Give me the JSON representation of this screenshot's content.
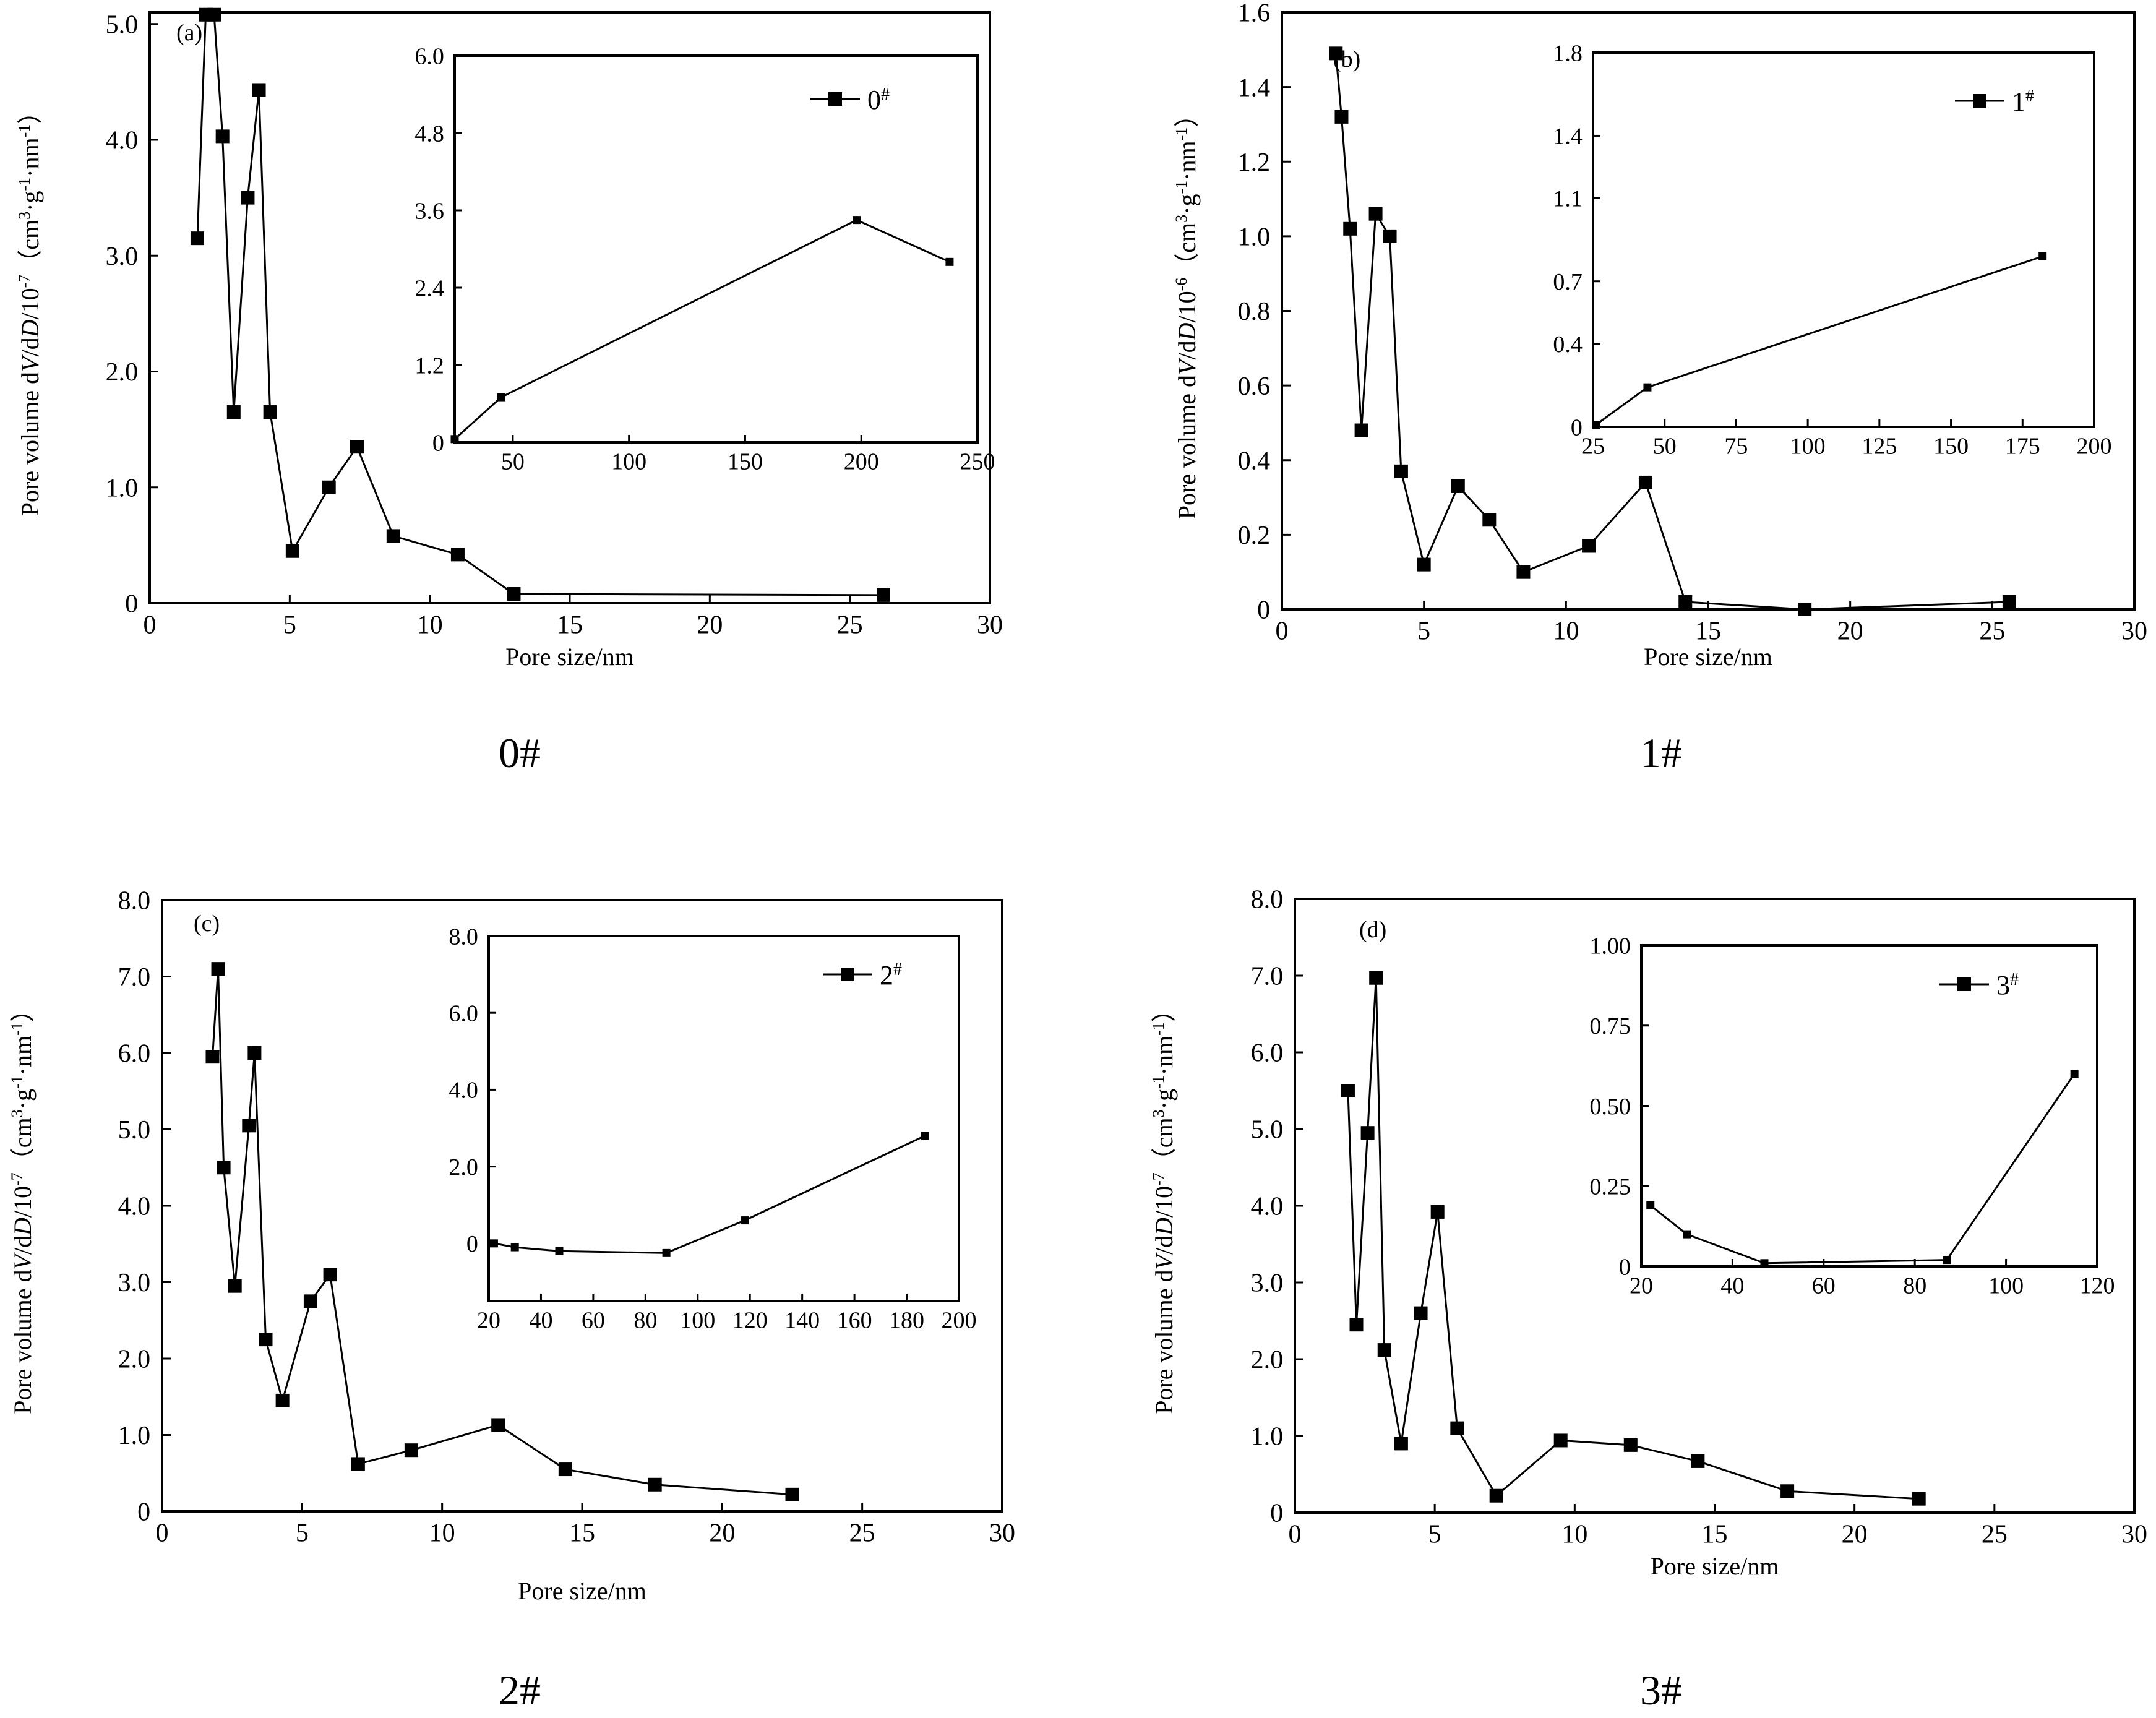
{
  "chart_data": [
    {
      "type": "line",
      "panel_label": "(a)",
      "caption": "0#",
      "xlabel": "Pore size/nm",
      "ylabel_parts": {
        "base": "Pore volume d",
        "v": "V",
        "mid": "/d",
        "d": "D",
        "scale": "/10",
        "exp": "-7",
        "unit_open": "（cm",
        "unit_exp1": "3",
        "unit_mid": "·g",
        "unit_exp2": "-1",
        "unit_mid2": "·nm",
        "unit_exp3": "-1",
        "unit_close": "）"
      },
      "xlim": [
        0,
        30
      ],
      "ylim": [
        0,
        5.1
      ],
      "xticks": [
        0,
        5,
        10,
        15,
        20,
        25,
        30
      ],
      "xtick_labels": [
        "0",
        "5",
        "10",
        "15",
        "20",
        "25",
        "30"
      ],
      "yticks": [
        0,
        1,
        2,
        3,
        4,
        5
      ],
      "ytick_labels": [
        "0",
        "1.0",
        "2.0",
        "3.0",
        "4.0",
        "5.0"
      ],
      "series": [
        {
          "name": "0#",
          "x": [
            1.7,
            2.0,
            2.3,
            2.6,
            3.0,
            3.5,
            3.9,
            4.3,
            5.1,
            6.4,
            7.4,
            8.7,
            11.0,
            13.0,
            26.2
          ],
          "y": [
            3.15,
            5.08,
            5.08,
            4.03,
            1.65,
            3.5,
            4.43,
            1.65,
            0.45,
            1.0,
            1.35,
            0.58,
            0.42,
            0.08,
            0.07
          ]
        }
      ],
      "inset": {
        "legend": "0#",
        "xlim": [
          25,
          250
        ],
        "ylim": [
          0,
          6.0
        ],
        "xticks": [
          50,
          100,
          150,
          200,
          250
        ],
        "xtick_labels": [
          "50",
          "100",
          "150",
          "200",
          "250"
        ],
        "yticks": [
          0,
          1.2,
          2.4,
          3.6,
          4.8,
          6.0
        ],
        "ytick_labels": [
          "0",
          "1.2",
          "2.4",
          "3.6",
          "4.8",
          "6.0"
        ],
        "series": [
          {
            "name": "0#",
            "x": [
              25,
              45,
              198,
              238
            ],
            "y": [
              0.05,
              0.7,
              3.45,
              2.8
            ]
          }
        ]
      }
    },
    {
      "type": "line",
      "panel_label": "(b)",
      "caption": "1#",
      "xlabel": "Pore size/nm",
      "ylabel_parts": {
        "base": "Pore volume d",
        "v": "V",
        "mid": "/d",
        "d": "D",
        "scale": "/10",
        "exp": "-6",
        "unit_open": "（cm",
        "unit_exp1": "3",
        "unit_mid": "·g",
        "unit_exp2": "-1",
        "unit_mid2": "·nm",
        "unit_exp3": "-1",
        "unit_close": "）"
      },
      "xlim": [
        0,
        30
      ],
      "ylim": [
        0,
        1.6
      ],
      "xticks": [
        0,
        5,
        10,
        15,
        20,
        25,
        30
      ],
      "xtick_labels": [
        "0",
        "5",
        "10",
        "15",
        "20",
        "25",
        "30"
      ],
      "yticks": [
        0,
        0.2,
        0.4,
        0.6,
        0.8,
        1.0,
        1.2,
        1.4,
        1.6
      ],
      "ytick_labels": [
        "0",
        "0.2",
        "0.4",
        "0.6",
        "0.8",
        "1.0",
        "1.2",
        "1.4",
        "1.6"
      ],
      "series": [
        {
          "name": "1#",
          "x": [
            1.9,
            2.1,
            2.4,
            2.8,
            3.3,
            3.8,
            4.2,
            5.0,
            6.2,
            7.3,
            8.5,
            10.8,
            12.8,
            14.2,
            18.4,
            25.6
          ],
          "y": [
            1.49,
            1.32,
            1.02,
            0.48,
            1.06,
            1.0,
            0.37,
            0.12,
            0.33,
            0.24,
            0.1,
            0.17,
            0.34,
            0.02,
            0.0,
            0.02
          ]
        }
      ],
      "inset": {
        "legend": "1#",
        "xlim": [
          25,
          200
        ],
        "ylim": [
          0,
          1.8
        ],
        "xticks": [
          25,
          50,
          75,
          100,
          125,
          150,
          175,
          200
        ],
        "xtick_labels": [
          "25",
          "50",
          "75",
          "100",
          "125",
          "150",
          "175",
          "200"
        ],
        "yticks": [
          0,
          0.4,
          0.7,
          1.1,
          1.4,
          1.8
        ],
        "ytick_labels": [
          "0",
          "0.4",
          "0.7",
          "1.1",
          "1.4",
          "1.8"
        ],
        "series": [
          {
            "name": "1#",
            "x": [
              26,
              44,
              182
            ],
            "y": [
              0.01,
              0.19,
              0.82
            ]
          }
        ]
      }
    },
    {
      "type": "line",
      "panel_label": "(c)",
      "caption": "2#",
      "xlabel": "Pore size/nm",
      "ylabel_parts": {
        "base": "Pore volume d",
        "v": "V",
        "mid": "/d",
        "d": "D",
        "scale": "/10",
        "exp": "-7",
        "unit_open": "（cm",
        "unit_exp1": "3",
        "unit_mid": "·g",
        "unit_exp2": "-1",
        "unit_mid2": "·nm",
        "unit_exp3": "-1",
        "unit_close": "）"
      },
      "xlim": [
        0,
        30
      ],
      "ylim": [
        0,
        8.0
      ],
      "xticks": [
        0,
        5,
        10,
        15,
        20,
        25,
        30
      ],
      "xtick_labels": [
        "0",
        "5",
        "10",
        "15",
        "20",
        "25",
        "30"
      ],
      "yticks": [
        0,
        1,
        2,
        3,
        4,
        5,
        6,
        7,
        8
      ],
      "ytick_labels": [
        "0",
        "1.0",
        "2.0",
        "3.0",
        "4.0",
        "5.0",
        "6.0",
        "7.0",
        "8.0"
      ],
      "series": [
        {
          "name": "2#",
          "x": [
            1.8,
            2.0,
            2.2,
            2.6,
            3.1,
            3.3,
            3.7,
            4.3,
            5.3,
            6.0,
            7.0,
            8.9,
            12.0,
            14.4,
            17.6,
            22.5
          ],
          "y": [
            5.95,
            7.1,
            4.5,
            2.95,
            5.05,
            6.0,
            2.25,
            1.45,
            2.75,
            3.1,
            0.62,
            0.8,
            1.13,
            0.55,
            0.35,
            0.22
          ]
        }
      ],
      "inset": {
        "legend": "2#",
        "xlim": [
          20,
          200
        ],
        "ylim": [
          -1.5,
          8.0
        ],
        "xticks": [
          20,
          40,
          60,
          80,
          100,
          120,
          140,
          160,
          180,
          200
        ],
        "xtick_labels": [
          "20",
          "40",
          "60",
          "80",
          "100",
          "120",
          "140",
          "160",
          "180",
          "200"
        ],
        "yticks": [
          0,
          2,
          4,
          6,
          8
        ],
        "ytick_labels": [
          "0",
          "2.0",
          "4.0",
          "6.0",
          "8.0"
        ],
        "series": [
          {
            "name": "2#",
            "x": [
              22,
              30,
              47,
              88,
              118,
              187
            ],
            "y": [
              0.0,
              -0.1,
              -0.2,
              -0.25,
              0.6,
              2.8
            ]
          }
        ]
      }
    },
    {
      "type": "line",
      "panel_label": "(d)",
      "caption": "3#",
      "xlabel": "Pore size/nm",
      "ylabel_parts": {
        "base": "Pore volume d",
        "v": "V",
        "mid": "/d",
        "d": "D",
        "scale": "/10",
        "exp": "-7",
        "unit_open": "（cm",
        "unit_exp1": "3",
        "unit_mid": "·g",
        "unit_exp2": "-1",
        "unit_mid2": "·nm",
        "unit_exp3": "-1",
        "unit_close": "）"
      },
      "xlim": [
        0,
        30
      ],
      "ylim": [
        0,
        8.0
      ],
      "xticks": [
        0,
        5,
        10,
        15,
        20,
        25,
        30
      ],
      "xtick_labels": [
        "0",
        "5",
        "10",
        "15",
        "20",
        "25",
        "30"
      ],
      "yticks": [
        0,
        1,
        2,
        3,
        4,
        5,
        6,
        7,
        8
      ],
      "ytick_labels": [
        "0",
        "1.0",
        "2.0",
        "3.0",
        "4.0",
        "5.0",
        "6.0",
        "7.0",
        "8.0"
      ],
      "series": [
        {
          "name": "3#",
          "x": [
            1.9,
            2.2,
            2.6,
            2.9,
            3.2,
            3.8,
            4.5,
            5.1,
            5.8,
            7.2,
            9.5,
            12.0,
            14.4,
            17.6,
            22.3
          ],
          "y": [
            5.5,
            2.45,
            4.95,
            6.97,
            2.12,
            0.9,
            2.6,
            3.92,
            1.1,
            0.22,
            0.94,
            0.88,
            0.67,
            0.28,
            0.18
          ]
        }
      ],
      "inset": {
        "legend": "3#",
        "xlim": [
          20,
          120
        ],
        "ylim": [
          0,
          1.0
        ],
        "xticks": [
          20,
          40,
          60,
          80,
          100,
          120
        ],
        "xtick_labels": [
          "20",
          "40",
          "60",
          "80",
          "100",
          "120"
        ],
        "yticks": [
          0,
          0.25,
          0.5,
          0.75,
          1.0
        ],
        "ytick_labels": [
          "0",
          "0.25",
          "0.50",
          "0.75",
          "1.00"
        ],
        "series": [
          {
            "name": "3#",
            "x": [
              22,
              30,
              47,
              87,
              115
            ],
            "y": [
              0.19,
              0.1,
              0.01,
              0.02,
              0.6
            ]
          }
        ]
      }
    }
  ]
}
